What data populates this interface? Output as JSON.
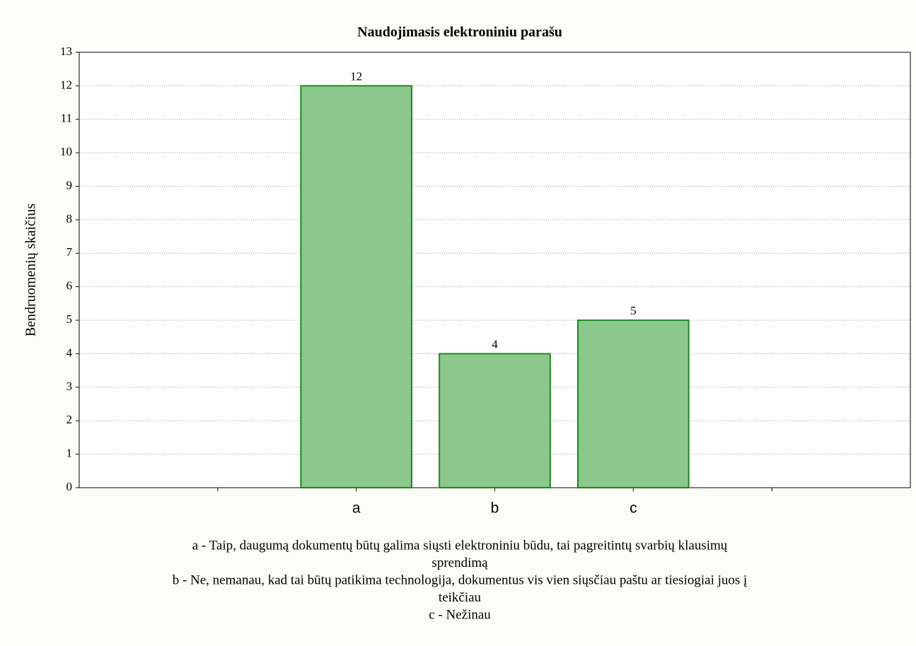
{
  "chart_data": {
    "type": "bar",
    "title": "Naudojimasis elektroniniu parašu",
    "ylabel": "Bendruomenių skaičius",
    "categories": [
      null,
      "a",
      "b",
      "c",
      null
    ],
    "values": [
      null,
      12,
      4,
      5,
      null
    ],
    "color": "#8cc88c",
    "edge_color": "#1f8a1f",
    "ylim": [
      0,
      13
    ],
    "yticks": [
      0,
      1,
      2,
      3,
      4,
      5,
      6,
      7,
      8,
      9,
      10,
      11,
      12,
      13
    ],
    "grid": true,
    "notes": [
      "a - Taip, daugumą dokumentų būtų galima siųsti elektroniniu būdu, tai pagreitintų svarbių klausimų",
      "sprendimą",
      "b - Ne, nemanau, kad tai būtų patikima technologija, dokumentus vis vien siųsčiau paštu ar  tiesiogiai juos į",
      "teikčiau",
      "c - Nežinau"
    ]
  }
}
